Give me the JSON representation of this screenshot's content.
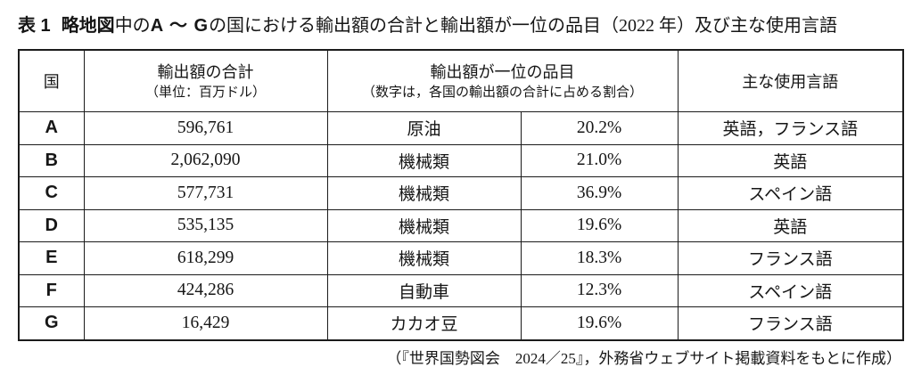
{
  "title": {
    "label": "表 1",
    "keyword": "略地図",
    "mid": "中の",
    "range": "A ～ G",
    "rest": "の国における輸出額の合計と輸出額が一位の品目（2022 年）及び主な使用言語"
  },
  "table": {
    "headers": {
      "country": "国",
      "export_total_line1": "輸出額の合計",
      "export_total_line2": "（単位：百万ドル）",
      "top_item_line1": "輸出額が一位の品目",
      "top_item_line2": "（数字は，各国の輸出額の合計に占める割合）",
      "languages": "主な使用言語"
    },
    "rows": [
      {
        "country": "A",
        "export_total": "596,761",
        "top_item": "原油",
        "share": "20.2%",
        "languages": "英語，フランス語"
      },
      {
        "country": "B",
        "export_total": "2,062,090",
        "top_item": "機械類",
        "share": "21.0%",
        "languages": "英語"
      },
      {
        "country": "C",
        "export_total": "577,731",
        "top_item": "機械類",
        "share": "36.9%",
        "languages": "スペイン語"
      },
      {
        "country": "D",
        "export_total": "535,135",
        "top_item": "機械類",
        "share": "19.6%",
        "languages": "英語"
      },
      {
        "country": "E",
        "export_total": "618,299",
        "top_item": "機械類",
        "share": "18.3%",
        "languages": "フランス語"
      },
      {
        "country": "F",
        "export_total": "424,286",
        "top_item": "自動車",
        "share": "12.3%",
        "languages": "スペイン語"
      },
      {
        "country": "G",
        "export_total": "16,429",
        "top_item": "カカオ豆",
        "share": "19.6%",
        "languages": "フランス語"
      }
    ]
  },
  "source_note": "（『世界国勢図会　2024／25』，外務省ウェブサイト掲載資料をもとに作成）"
}
